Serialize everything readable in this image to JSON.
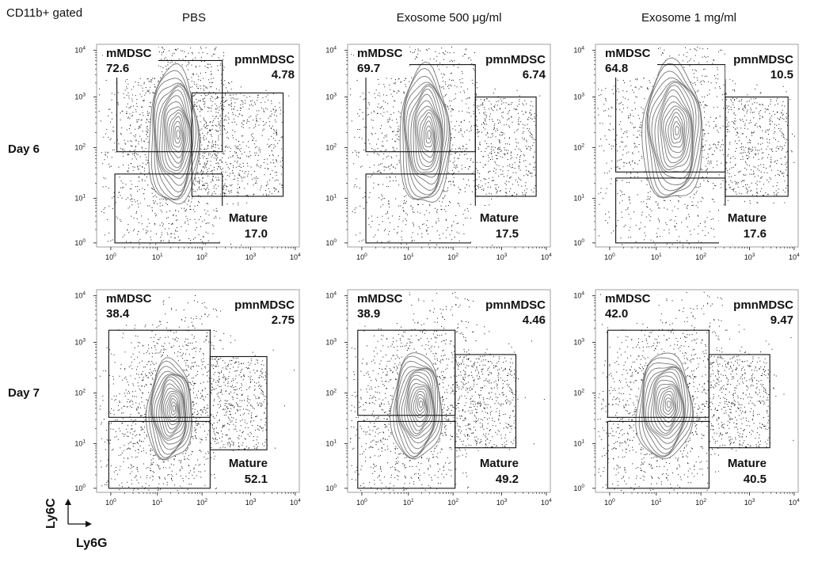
{
  "header": {
    "gating": "CD11b+ gated"
  },
  "columns": [
    "PBS",
    "Exosome 500 μg/ml",
    "Exosome 1 mg/ml"
  ],
  "rows": [
    "Day 6",
    "Day 7"
  ],
  "axes": {
    "x_name": "Ly6G",
    "y_name": "Ly6C",
    "tick_base": "10",
    "tick_exponents": [
      "0",
      "1",
      "2",
      "3",
      "4"
    ]
  },
  "gate_names": {
    "mmdsc": "mMDSC",
    "pmnmdsc": "pmnMDSC",
    "mature": "Mature"
  },
  "chart_data": {
    "type": "scatter",
    "subtype": "flow-cytometry-contour",
    "xlabel": "Ly6G",
    "ylabel": "Ly6C",
    "scale": "log",
    "xlim": [
      1,
      10000
    ],
    "ylim": [
      1,
      10000
    ],
    "panels": [
      {
        "row": "Day 6",
        "column": "PBS",
        "mMDSC": "72.6",
        "pmnMDSC": "4.78",
        "Mature": "17.0"
      },
      {
        "row": "Day 6",
        "column": "Exosome 500 μg/ml",
        "mMDSC": "69.7",
        "pmnMDSC": "6.74",
        "Mature": "17.5"
      },
      {
        "row": "Day 6",
        "column": "Exosome 1 mg/ml",
        "mMDSC": "64.8",
        "pmnMDSC": "10.5",
        "Mature": "17.6"
      },
      {
        "row": "Day 7",
        "column": "PBS",
        "mMDSC": "38.4",
        "pmnMDSC": "2.75",
        "Mature": "52.1"
      },
      {
        "row": "Day 7",
        "column": "Exosome 500 μg/ml",
        "mMDSC": "38.9",
        "pmnMDSC": "4.46",
        "Mature": "49.2"
      },
      {
        "row": "Day 7",
        "column": "Exosome 1 mg/ml",
        "mMDSC": "42.0",
        "pmnMDSC": "9.47",
        "Mature": "40.5"
      }
    ]
  }
}
